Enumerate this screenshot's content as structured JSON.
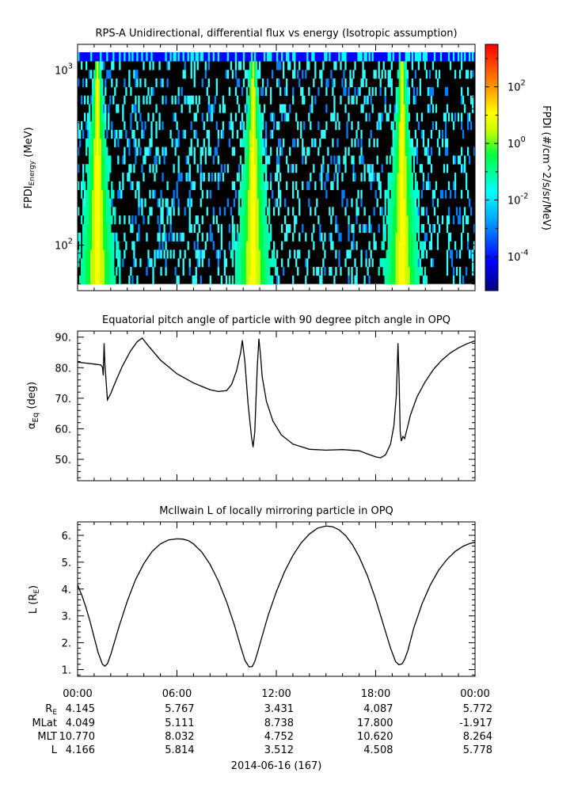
{
  "chart_data": [
    {
      "type": "heatmap",
      "title": "RPS-A Unidirectional, differential flux vs energy (Isotropic assumption)",
      "ylabel": "FPDI",
      "ylabel_subscript": "Energy",
      "ylabel_unit": "(MeV)",
      "y_scale": "log",
      "ylim": [
        55,
        1400
      ],
      "xlim_hours": [
        0,
        24
      ],
      "ytick_labels": [
        {
          "base": "10",
          "exp": "2",
          "value": 100
        },
        {
          "base": "10",
          "exp": "3",
          "value": 1000
        }
      ],
      "colorbar": {
        "label": "FPDI (#/cm^2/s/sr/MeV)",
        "scale": "log",
        "range_exp": [
          -5.2,
          3.5
        ],
        "tick_labels": [
          {
            "base": "10",
            "exp": "2",
            "value": 100
          },
          {
            "base": "10",
            "exp": "0",
            "value": 1
          },
          {
            "base": "10",
            "exp": "-2",
            "value": 0.01
          },
          {
            "base": "10",
            "exp": "-4",
            "value": 0.0001
          }
        ]
      },
      "belt_passes_hours": [
        1.2,
        10.6,
        19.6
      ],
      "colors": {
        "background_flux": "#000000",
        "top_band": "#0000ff",
        "speckle": "#33ffff"
      }
    },
    {
      "type": "line",
      "title": "Equatorial pitch angle of particle with 90 degree pitch angle in OPQ",
      "ylabel": "α",
      "ylabel_subscript": "Eq",
      "ylabel_unit": "(deg)",
      "ylim": [
        43,
        92
      ],
      "ytick_labels": [
        "50.",
        "60.",
        "70.",
        "80.",
        "90."
      ],
      "ytick_values": [
        50,
        60,
        70,
        80,
        90
      ],
      "series": [
        {
          "x": [
            0,
            0.5,
            1.0,
            1.4,
            1.5,
            1.55,
            1.6,
            1.65,
            1.8,
            2.0,
            2.3,
            2.7,
            3.2,
            3.6,
            3.9,
            4.3,
            5.0,
            6.0,
            7.0,
            8.0,
            8.5,
            9.0,
            9.3,
            9.6,
            9.85,
            9.95,
            10.1,
            10.3,
            10.5,
            10.6,
            10.7,
            10.85,
            10.95,
            11.05,
            11.15,
            11.4,
            11.8,
            12.3,
            13.0,
            14.0,
            15.0,
            16.0,
            17.0,
            17.5,
            18.0,
            18.3,
            18.6,
            18.9,
            19.1,
            19.25,
            19.35,
            19.42,
            19.48,
            19.55,
            19.65,
            19.75,
            19.9,
            20.1,
            20.5,
            21.0,
            21.5,
            22.0,
            22.5,
            23.0,
            23.5,
            24.0
          ],
          "y": [
            81.8,
            81.5,
            81.2,
            80.9,
            80.2,
            77.5,
            88.0,
            81.0,
            69.5,
            71.5,
            75.5,
            80.5,
            85.5,
            88.5,
            89.7,
            87.0,
            82.5,
            78.0,
            75.0,
            72.8,
            72.2,
            72.5,
            74.5,
            79.0,
            85.0,
            89.0,
            82.0,
            68.0,
            57.5,
            54.0,
            59.0,
            80.0,
            89.5,
            84.0,
            77.0,
            69.0,
            62.5,
            58.0,
            55.0,
            53.3,
            53.0,
            53.2,
            52.8,
            51.8,
            50.8,
            50.5,
            51.5,
            55.0,
            61.0,
            71.0,
            88.0,
            75.0,
            59.0,
            56.0,
            57.5,
            56.8,
            60.0,
            64.5,
            70.5,
            75.5,
            79.5,
            82.5,
            84.8,
            86.5,
            87.8,
            88.8
          ]
        }
      ]
    },
    {
      "type": "line",
      "title": "McIlwain L of locally mirroring particle in OPQ",
      "ylabel": "L",
      "ylabel_unit_base": "R",
      "ylabel_unit_sub": "E",
      "ylim": [
        0.75,
        6.5
      ],
      "ytick_labels": [
        "1.",
        "2.",
        "3.",
        "4.",
        "5.",
        "6."
      ],
      "ytick_values": [
        1,
        2,
        3,
        4,
        5,
        6
      ],
      "series": [
        {
          "x": [
            0,
            0.25,
            0.5,
            0.75,
            1.0,
            1.25,
            1.5,
            1.65,
            1.8,
            2.0,
            2.5,
            3.0,
            3.5,
            4.0,
            4.5,
            5.0,
            5.5,
            6.0,
            6.35,
            6.7,
            7.0,
            7.5,
            8.0,
            8.5,
            9.0,
            9.5,
            9.8,
            10.1,
            10.35,
            10.55,
            10.7,
            10.85,
            11.1,
            11.5,
            12.0,
            12.5,
            13.0,
            13.5,
            14.0,
            14.5,
            15.0,
            15.4,
            15.8,
            16.2,
            16.6,
            17.0,
            17.5,
            18.0,
            18.5,
            18.9,
            19.2,
            19.4,
            19.6,
            19.75,
            19.95,
            20.3,
            20.8,
            21.3,
            21.8,
            22.3,
            22.8,
            23.3,
            23.7,
            24.0
          ],
          "y": [
            4.15,
            3.78,
            3.32,
            2.8,
            2.2,
            1.62,
            1.2,
            1.13,
            1.22,
            1.55,
            2.6,
            3.55,
            4.35,
            4.95,
            5.4,
            5.68,
            5.83,
            5.87,
            5.86,
            5.8,
            5.68,
            5.38,
            4.92,
            4.3,
            3.52,
            2.6,
            1.95,
            1.35,
            1.1,
            1.12,
            1.3,
            1.6,
            2.15,
            3.0,
            3.9,
            4.65,
            5.25,
            5.72,
            6.05,
            6.27,
            6.35,
            6.32,
            6.2,
            5.98,
            5.65,
            5.2,
            4.5,
            3.62,
            2.6,
            1.8,
            1.3,
            1.18,
            1.22,
            1.38,
            1.72,
            2.55,
            3.45,
            4.15,
            4.7,
            5.1,
            5.4,
            5.6,
            5.7,
            5.74
          ]
        }
      ]
    }
  ],
  "time_axis": {
    "tick_labels": [
      "00:00",
      "06:00",
      "12:00",
      "18:00",
      "00:00"
    ],
    "tick_hours": [
      0,
      6,
      12,
      18,
      24
    ],
    "date_label": "2014-06-16 (167)",
    "ephemeris": [
      {
        "label": "R",
        "label_sub": "E",
        "values": [
          "4.145",
          "5.767",
          "3.431",
          "4.087",
          "5.772"
        ]
      },
      {
        "label": "MLat",
        "label_sub": "",
        "values": [
          "4.049",
          "5.111",
          "8.738",
          "17.800",
          "-1.917"
        ]
      },
      {
        "label": "MLT",
        "label_sub": "",
        "values": [
          "10.770",
          "8.032",
          "4.752",
          "10.620",
          "8.264"
        ]
      },
      {
        "label": "L",
        "label_sub": "",
        "values": [
          "4.166",
          "5.814",
          "3.512",
          "4.508",
          "5.778"
        ]
      }
    ]
  }
}
